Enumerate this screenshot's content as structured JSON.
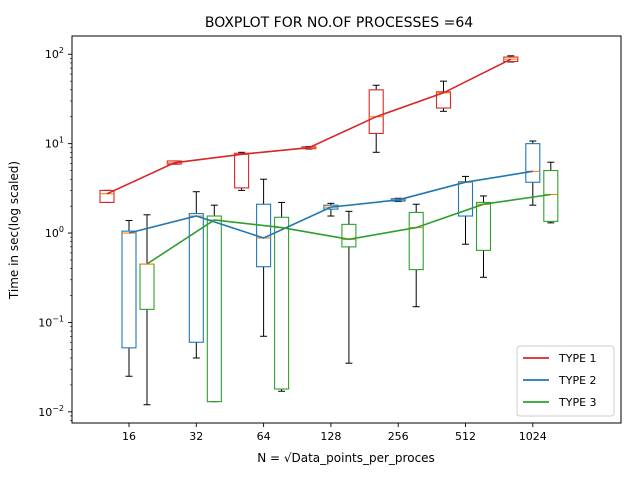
{
  "chart_data": {
    "type": "box",
    "title": "BOXPLOT FOR NO.OF PROCESSES =64",
    "xlabel": "N = √Data_points_per_proces",
    "ylabel": "Time in sec(log scaled)",
    "yscale": "log",
    "ylim": [
      0.0075,
      160
    ],
    "yticks": [
      {
        "value": 0.01,
        "base": "10",
        "exp": "−2"
      },
      {
        "value": 0.1,
        "base": "10",
        "exp": "−1"
      },
      {
        "value": 1,
        "base": "10",
        "exp": "0"
      },
      {
        "value": 10,
        "base": "10",
        "exp": "1"
      },
      {
        "value": 100,
        "base": "10",
        "exp": "2"
      }
    ],
    "categories": [
      "16",
      "32",
      "64",
      "128",
      "256",
      "512",
      "1024"
    ],
    "legend_position": "lower-right",
    "grid": false,
    "median_color": "#ff7f0e",
    "series": [
      {
        "name": "TYPE 1",
        "color": "#d62728",
        "line": [
          2.75,
          6.1,
          7.6,
          9.0,
          20.0,
          37.0,
          88.0
        ],
        "boxes": [
          {
            "whislo": 2.2,
            "q1": 2.2,
            "med": 2.75,
            "q3": 3.0,
            "whishi": 3.0
          },
          {
            "whislo": 5.9,
            "q1": 5.9,
            "med": 6.1,
            "q3": 6.4,
            "whishi": 6.4
          },
          {
            "whislo": 3.0,
            "q1": 3.2,
            "med": 7.6,
            "q3": 7.8,
            "whishi": 8.0
          },
          {
            "whislo": 8.7,
            "q1": 8.8,
            "med": 9.0,
            "q3": 9.2,
            "whishi": 9.3
          },
          {
            "whislo": 8.0,
            "q1": 13.0,
            "med": 20.0,
            "q3": 40.0,
            "whishi": 45.0
          },
          {
            "whislo": 23.0,
            "q1": 25.0,
            "med": 37.0,
            "q3": 38.0,
            "whishi": 50.0
          },
          {
            "whislo": 82.0,
            "q1": 83.0,
            "med": 88.0,
            "q3": 93.0,
            "whishi": 96.0
          }
        ]
      },
      {
        "name": "TYPE 2",
        "color": "#1f77b4",
        "line": [
          1.0,
          1.55,
          0.88,
          1.95,
          2.35,
          3.7,
          4.9
        ],
        "boxes": [
          {
            "whislo": 0.025,
            "q1": 0.052,
            "med": 1.0,
            "q3": 1.05,
            "whishi": 1.38
          },
          {
            "whislo": 0.04,
            "q1": 0.06,
            "med": 1.55,
            "q3": 1.65,
            "whishi": 2.9
          },
          {
            "whislo": 0.07,
            "q1": 0.42,
            "med": 0.88,
            "q3": 2.1,
            "whishi": 4.0
          },
          {
            "whislo": 1.55,
            "q1": 1.85,
            "med": 1.95,
            "q3": 2.05,
            "whishi": 2.15
          },
          {
            "whislo": 2.25,
            "q1": 2.28,
            "med": 2.35,
            "q3": 2.42,
            "whishi": 2.45
          },
          {
            "whislo": 0.75,
            "q1": 1.55,
            "med": 3.7,
            "q3": 3.75,
            "whishi": 4.3
          },
          {
            "whislo": 2.05,
            "q1": 3.7,
            "med": 4.9,
            "q3": 10.0,
            "whishi": 10.7
          }
        ]
      },
      {
        "name": "TYPE 3",
        "color": "#2ca02c",
        "line": [
          0.45,
          1.4,
          1.15,
          0.85,
          1.15,
          2.1,
          2.7
        ],
        "boxes": [
          {
            "whislo": 0.012,
            "q1": 0.14,
            "med": 0.45,
            "q3": 0.45,
            "whishi": 1.6
          },
          {
            "whislo": 0.013,
            "q1": 0.013,
            "med": 1.4,
            "q3": 1.55,
            "whishi": 2.05
          },
          {
            "whislo": 0.017,
            "q1": 0.018,
            "med": 1.15,
            "q3": 1.5,
            "whishi": 2.2
          },
          {
            "whislo": 0.035,
            "q1": 0.7,
            "med": 0.85,
            "q3": 1.25,
            "whishi": 1.75
          },
          {
            "whislo": 0.15,
            "q1": 0.39,
            "med": 1.15,
            "q3": 1.7,
            "whishi": 2.1
          },
          {
            "whislo": 0.32,
            "q1": 0.64,
            "med": 2.1,
            "q3": 2.2,
            "whishi": 2.6
          },
          {
            "whislo": 1.3,
            "q1": 1.35,
            "med": 2.7,
            "q3": 5.0,
            "whishi": 6.2
          }
        ]
      }
    ]
  }
}
